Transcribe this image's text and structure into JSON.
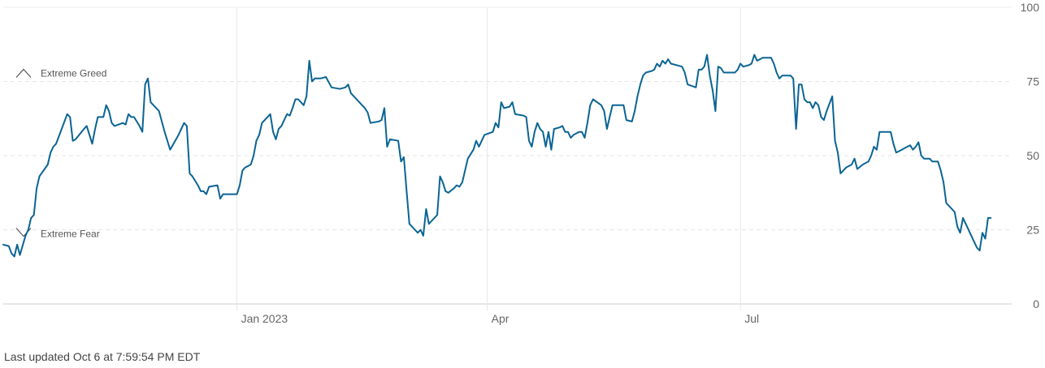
{
  "chart_data": {
    "type": "line",
    "ylim": [
      0,
      100
    ],
    "y_ticks": [
      "100",
      "75",
      "50",
      "25",
      "0"
    ],
    "x_ticks": [
      {
        "label": "Jan 2023",
        "x": 84
      },
      {
        "label": "Apr",
        "x": 174
      },
      {
        "label": "Jul",
        "x": 265
      }
    ],
    "x_range": [
      0,
      359
    ],
    "zones": [
      {
        "label": "Extreme Greed",
        "value": 75,
        "direction": "up"
      },
      {
        "label": "Extreme Fear",
        "value": 25,
        "direction": "down"
      }
    ],
    "line_color": "#0a6494",
    "series": [
      {
        "values": [
          [
            0,
            20
          ],
          [
            2,
            19.5
          ],
          [
            3,
            17
          ],
          [
            4,
            16
          ],
          [
            5,
            20
          ],
          [
            6,
            16.5
          ],
          [
            8,
            23
          ],
          [
            9,
            25
          ],
          [
            10,
            29
          ],
          [
            11,
            30
          ],
          [
            12,
            39
          ],
          [
            13,
            43
          ],
          [
            16,
            47
          ],
          [
            17,
            51
          ],
          [
            18,
            53
          ],
          [
            19,
            54
          ],
          [
            21,
            59
          ],
          [
            23,
            64
          ],
          [
            24,
            63
          ],
          [
            25,
            55
          ],
          [
            26,
            55.5
          ],
          [
            29,
            59
          ],
          [
            30,
            60
          ],
          [
            32,
            54
          ],
          [
            33,
            59
          ],
          [
            34,
            63
          ],
          [
            36,
            63
          ],
          [
            37,
            67
          ],
          [
            38,
            65
          ],
          [
            39,
            61
          ],
          [
            40,
            60
          ],
          [
            43,
            61
          ],
          [
            44,
            60.5
          ],
          [
            45,
            64
          ],
          [
            46,
            63
          ],
          [
            47,
            63
          ],
          [
            49,
            60
          ],
          [
            50,
            58
          ],
          [
            51,
            74
          ],
          [
            52,
            76
          ],
          [
            53,
            68
          ],
          [
            55,
            66
          ],
          [
            56,
            65
          ],
          [
            58,
            58
          ],
          [
            60,
            52
          ],
          [
            63,
            57
          ],
          [
            65,
            61
          ],
          [
            66,
            60
          ],
          [
            67,
            44
          ],
          [
            68,
            43
          ],
          [
            70,
            40
          ],
          [
            71,
            38
          ],
          [
            72,
            38
          ],
          [
            73,
            37
          ],
          [
            74,
            39.5
          ],
          [
            77,
            40
          ],
          [
            78,
            35.5
          ],
          [
            79,
            37
          ],
          [
            82,
            37
          ],
          [
            84,
            37
          ],
          [
            85,
            40
          ],
          [
            86,
            45
          ],
          [
            87,
            46
          ],
          [
            89,
            47
          ],
          [
            90,
            50
          ],
          [
            91,
            55
          ],
          [
            92,
            57
          ],
          [
            93,
            61
          ],
          [
            95,
            63
          ],
          [
            96,
            64
          ],
          [
            97,
            58
          ],
          [
            98,
            55.5
          ],
          [
            99,
            59
          ],
          [
            100,
            60
          ],
          [
            101,
            62
          ],
          [
            102,
            64
          ],
          [
            103,
            63.5
          ],
          [
            104,
            66
          ],
          [
            105,
            69
          ],
          [
            106,
            69
          ],
          [
            107,
            68
          ],
          [
            108,
            67
          ],
          [
            109,
            70
          ],
          [
            110,
            82
          ],
          [
            111,
            75
          ],
          [
            112,
            76
          ],
          [
            114,
            76
          ],
          [
            116,
            76.5
          ],
          [
            118,
            73
          ],
          [
            121,
            72.5
          ],
          [
            123,
            73
          ],
          [
            124,
            74
          ],
          [
            125,
            71
          ],
          [
            128,
            68
          ],
          [
            130,
            66
          ],
          [
            131,
            64.5
          ],
          [
            132,
            61
          ],
          [
            135,
            61.5
          ],
          [
            136,
            62
          ],
          [
            137,
            66
          ],
          [
            138,
            53
          ],
          [
            139,
            55.5
          ],
          [
            142,
            55
          ],
          [
            143,
            48
          ],
          [
            144,
            49.5
          ],
          [
            145,
            38
          ],
          [
            146,
            27
          ],
          [
            148,
            25
          ],
          [
            149,
            24
          ],
          [
            150,
            25
          ],
          [
            151,
            23
          ],
          [
            152,
            32
          ],
          [
            153,
            27
          ],
          [
            154,
            28
          ],
          [
            156,
            30
          ],
          [
            157,
            43
          ],
          [
            158,
            41
          ],
          [
            159,
            38
          ],
          [
            160,
            37.5
          ],
          [
            162,
            39
          ],
          [
            163,
            40
          ],
          [
            164,
            39.5
          ],
          [
            165,
            41
          ],
          [
            166,
            45
          ],
          [
            167,
            49
          ],
          [
            169,
            52
          ],
          [
            170,
            55
          ],
          [
            171,
            53
          ],
          [
            172,
            55
          ],
          [
            173,
            57
          ],
          [
            176,
            58
          ],
          [
            177,
            61
          ],
          [
            178,
            59.5
          ],
          [
            179,
            68
          ],
          [
            180,
            66
          ],
          [
            182,
            66.5
          ],
          [
            183,
            68
          ],
          [
            184,
            64
          ],
          [
            187,
            63.5
          ],
          [
            188,
            63
          ],
          [
            189,
            55
          ],
          [
            190,
            53
          ],
          [
            191,
            58
          ],
          [
            192,
            61
          ],
          [
            193,
            59
          ],
          [
            194,
            58
          ],
          [
            195,
            53
          ],
          [
            196,
            58
          ],
          [
            197,
            52
          ],
          [
            198,
            59
          ],
          [
            200,
            59.5
          ],
          [
            201,
            60
          ],
          [
            202,
            58
          ],
          [
            203,
            58
          ],
          [
            204,
            56
          ],
          [
            205,
            57
          ],
          [
            207,
            58
          ],
          [
            208,
            58
          ],
          [
            209,
            56
          ],
          [
            210,
            61
          ],
          [
            211,
            67
          ],
          [
            212,
            69
          ],
          [
            215,
            67
          ],
          [
            216,
            65
          ],
          [
            217,
            59
          ],
          [
            218,
            63
          ],
          [
            219,
            67
          ],
          [
            223,
            67
          ],
          [
            224,
            62
          ],
          [
            226,
            61.5
          ],
          [
            227,
            65
          ],
          [
            228,
            70
          ],
          [
            229,
            74
          ],
          [
            230,
            77
          ],
          [
            231,
            78
          ],
          [
            233,
            78.5
          ],
          [
            234,
            79
          ],
          [
            235,
            81
          ],
          [
            236,
            80
          ],
          [
            237,
            82
          ],
          [
            238,
            81
          ],
          [
            239,
            82.5
          ],
          [
            240,
            81
          ],
          [
            244,
            80
          ],
          [
            245,
            78
          ],
          [
            246,
            74
          ],
          [
            249,
            73
          ],
          [
            250,
            79
          ],
          [
            251,
            79
          ],
          [
            252,
            80
          ],
          [
            253,
            84
          ],
          [
            254,
            77
          ],
          [
            255,
            72
          ],
          [
            256,
            65
          ],
          [
            257,
            80
          ],
          [
            258,
            79.5
          ],
          [
            259,
            78
          ],
          [
            263,
            78
          ],
          [
            264,
            79
          ],
          [
            265,
            81
          ],
          [
            266,
            80
          ],
          [
            268,
            80.5
          ],
          [
            269,
            81
          ],
          [
            270,
            84
          ],
          [
            271,
            82
          ],
          [
            272,
            82.5
          ],
          [
            273,
            83
          ],
          [
            276,
            83
          ],
          [
            277,
            81
          ],
          [
            278,
            78
          ],
          [
            279,
            76
          ],
          [
            280,
            77
          ],
          [
            283,
            77
          ],
          [
            284,
            76
          ],
          [
            285,
            59
          ],
          [
            286,
            74
          ],
          [
            287,
            74
          ],
          [
            288,
            69
          ],
          [
            289,
            68
          ],
          [
            290,
            68
          ],
          [
            291,
            66
          ],
          [
            292,
            68
          ],
          [
            293,
            67
          ],
          [
            294,
            63
          ],
          [
            295,
            62
          ],
          [
            296,
            65
          ],
          [
            298,
            70
          ],
          [
            299,
            55
          ],
          [
            300,
            51
          ],
          [
            301,
            44
          ],
          [
            302,
            45
          ],
          [
            303,
            46
          ],
          [
            305,
            47
          ],
          [
            306,
            49
          ],
          [
            307,
            45.5
          ],
          [
            309,
            47
          ],
          [
            311,
            48
          ],
          [
            312,
            50
          ],
          [
            313,
            53
          ],
          [
            314,
            52
          ],
          [
            315,
            58
          ],
          [
            316,
            58
          ],
          [
            319,
            58
          ],
          [
            320,
            54
          ],
          [
            321,
            51
          ],
          [
            323,
            52
          ],
          [
            324,
            52.5
          ],
          [
            325,
            53
          ],
          [
            326,
            53.5
          ],
          [
            327,
            52
          ],
          [
            328,
            53
          ],
          [
            329,
            54.5
          ],
          [
            330,
            50
          ],
          [
            331,
            49
          ],
          [
            333,
            49
          ],
          [
            334,
            48
          ],
          [
            336,
            48
          ],
          [
            337,
            45
          ],
          [
            338,
            41
          ],
          [
            339,
            34
          ],
          [
            340,
            33
          ],
          [
            342,
            31
          ],
          [
            343,
            26
          ],
          [
            344,
            24
          ],
          [
            345,
            29
          ],
          [
            346,
            27
          ],
          [
            348,
            23
          ],
          [
            350,
            19
          ],
          [
            351,
            18
          ],
          [
            352,
            24
          ],
          [
            353,
            22
          ],
          [
            354,
            29
          ],
          [
            355,
            29
          ]
        ]
      }
    ]
  },
  "footer": {
    "last_updated": "Last updated Oct 6 at 7:59:54 PM EDT"
  }
}
